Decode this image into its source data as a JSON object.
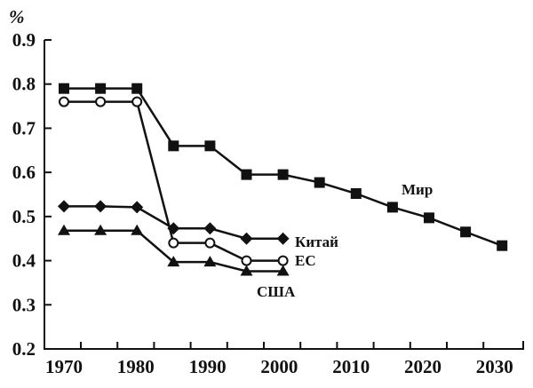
{
  "chart_data": {
    "type": "line",
    "title": "",
    "ylabel": "%",
    "xlabel": "",
    "ylim": [
      0.2,
      0.9
    ],
    "xlim": [
      1970,
      2030
    ],
    "yticks": [
      "0.2",
      "0.3",
      "0.4",
      "0.5",
      "0.6",
      "0.7",
      "0.8",
      "0.9"
    ],
    "xticks": [
      "1970",
      "1980",
      "1990",
      "2000",
      "2010",
      "2020",
      "2030"
    ],
    "grid": false,
    "series": [
      {
        "name": "Мир",
        "marker": "square-filled",
        "x": [
          1970,
          1975,
          1980,
          1985,
          1990,
          1995,
          2000,
          2005,
          2010,
          2015,
          2020,
          2025,
          2030
        ],
        "y": [
          0.79,
          0.79,
          0.79,
          0.66,
          0.66,
          0.595,
          0.595,
          0.577,
          0.552,
          0.521,
          0.497,
          0.465,
          0.434
        ]
      },
      {
        "name": "Китай",
        "marker": "circle-open",
        "x": [
          1970,
          1975,
          1980,
          1985,
          1990,
          1995,
          2000
        ],
        "y": [
          0.76,
          0.76,
          0.76,
          0.44,
          0.44,
          0.4,
          0.4
        ]
      },
      {
        "name": "ЕС",
        "marker": "diamond-filled",
        "x": [
          1970,
          1975,
          1980,
          1985,
          1990,
          1995,
          2000
        ],
        "y": [
          0.523,
          0.523,
          0.521,
          0.473,
          0.473,
          0.45,
          0.45
        ]
      },
      {
        "name": "США",
        "marker": "triangle-filled",
        "x": [
          1970,
          1975,
          1980,
          1985,
          1990,
          1995,
          2000
        ],
        "y": [
          0.468,
          0.468,
          0.468,
          0.397,
          0.397,
          0.376,
          0.376
        ]
      }
    ]
  }
}
